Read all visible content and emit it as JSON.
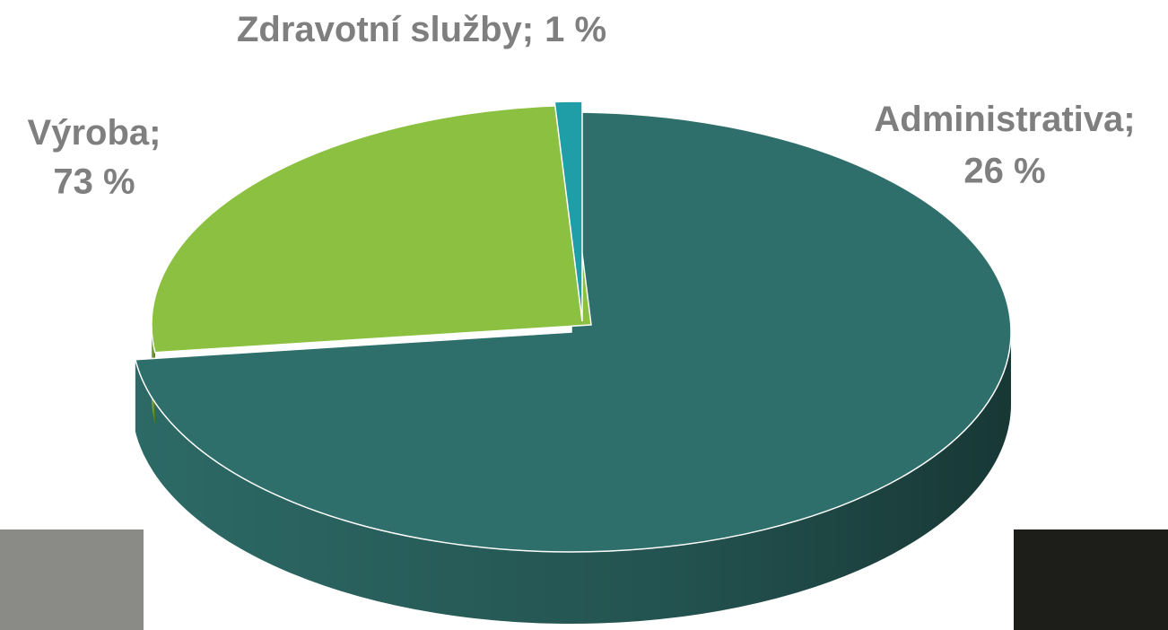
{
  "chart_data": {
    "type": "pie",
    "categories": [
      "Výroba",
      "Administrativa",
      "Zdravotní služby"
    ],
    "values": [
      73,
      26,
      1
    ],
    "value_labels": [
      "73 %",
      "26 %",
      "1 %"
    ],
    "label_separator": ";",
    "colors": [
      "#2f6f6b",
      "#8bc040",
      "#1f9ea8"
    ]
  }
}
